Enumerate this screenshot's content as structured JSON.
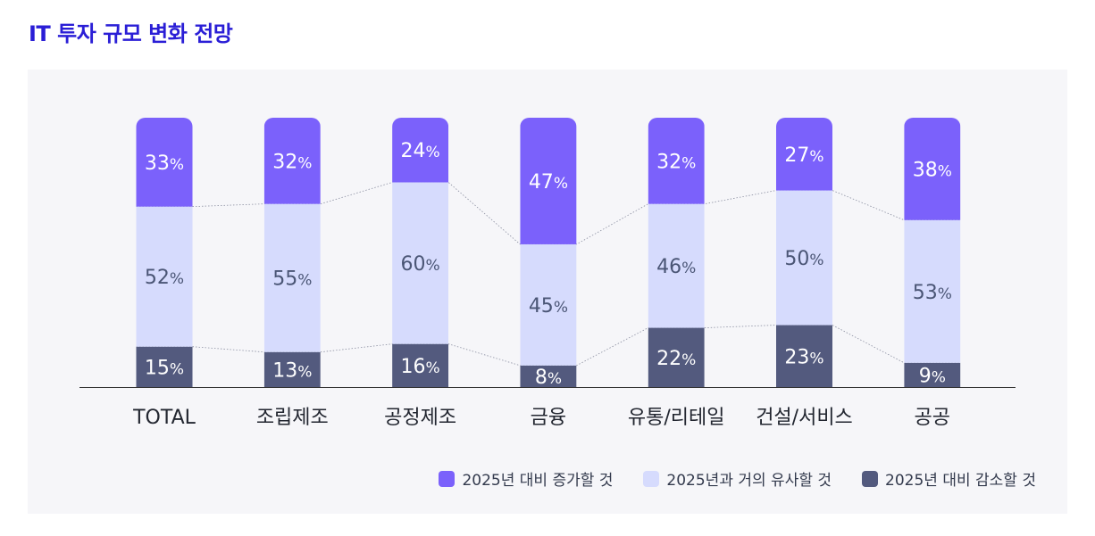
{
  "page_title": "IT 투자 규모 변화 전망",
  "chart_data": {
    "type": "bar",
    "stacked": true,
    "normalized": true,
    "categories": [
      "TOTAL",
      "조립제조",
      "공정제조",
      "금융",
      "유통/리테일",
      "건설/서비스",
      "공공"
    ],
    "series": [
      {
        "name": "2025년 대비 증가할 것",
        "values": [
          33,
          32,
          24,
          47,
          32,
          27,
          38
        ],
        "color": "#7b61fb",
        "label_color": "#ffffff"
      },
      {
        "name": "2025년과 거의 유사할 것",
        "values": [
          52,
          55,
          60,
          45,
          46,
          50,
          53
        ],
        "color": "#d6dbfd",
        "label_color": "#4a5575"
      },
      {
        "name": "2025년 대비 감소할 것",
        "values": [
          15,
          13,
          16,
          8,
          22,
          23,
          9
        ],
        "color": "#535a7e",
        "label_color": "#ffffff"
      }
    ],
    "value_suffix": "%",
    "ylim": [
      0,
      100
    ],
    "legend_position": "bottom-right",
    "connector_lines": true
  }
}
